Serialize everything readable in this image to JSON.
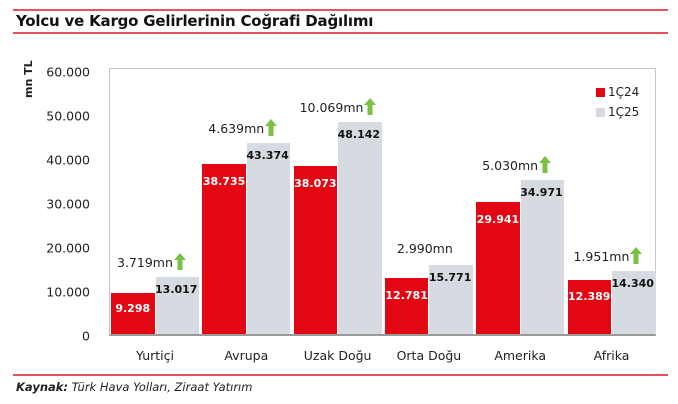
{
  "header": {
    "title": "Yolcu ve Kargo Gelirlerinin Coğrafi Dağılımı"
  },
  "footer": {
    "source_label": "Kaynak:",
    "source_text": "Türk Hava Yolları, Ziraat Yatırım"
  },
  "colors": {
    "series_1C24": "#e30613",
    "series_1C25": "#d5dbe0",
    "rule": "#e8525e",
    "arrow": "#7ac143"
  },
  "chart_data": {
    "type": "bar",
    "title": "Yolcu ve Kargo Gelirlerinin Coğrafi Dağılımı",
    "xlabel": "",
    "ylabel": "mn TL",
    "ylim": [
      0,
      60000
    ],
    "yticks": [
      "0",
      "10.000",
      "20.000",
      "30.000",
      "40.000",
      "50.000",
      "60.000"
    ],
    "grid": false,
    "legend_position": "top-right",
    "categories": [
      "Yurtiçi",
      "Avrupa",
      "Uzak Doğu",
      "Orta Doğu",
      "Amerika",
      "Afrika"
    ],
    "series": [
      {
        "name": "1Ç24",
        "values": [
          9298,
          38735,
          38073,
          12781,
          29941,
          12389
        ],
        "labels": [
          "9.298",
          "38.735",
          "38.073",
          "12.781",
          "29.941",
          "12.389"
        ]
      },
      {
        "name": "1Ç25",
        "values": [
          13017,
          43374,
          48142,
          15771,
          34971,
          14340
        ],
        "labels": [
          "13.017",
          "43.374",
          "48.142",
          "15.771",
          "34.971",
          "14.340"
        ]
      }
    ],
    "annotations": [
      {
        "category": "Yurtiçi",
        "text": "3.719mn",
        "arrow": true
      },
      {
        "category": "Avrupa",
        "text": "4.639mn",
        "arrow": true
      },
      {
        "category": "Uzak Doğu",
        "text": "10.069mn",
        "arrow": true
      },
      {
        "category": "Orta Doğu",
        "text": "2.990mn",
        "arrow": false
      },
      {
        "category": "Amerika",
        "text": "5.030mn",
        "arrow": true
      },
      {
        "category": "Afrika",
        "text": "1.951mn",
        "arrow": true
      }
    ]
  }
}
